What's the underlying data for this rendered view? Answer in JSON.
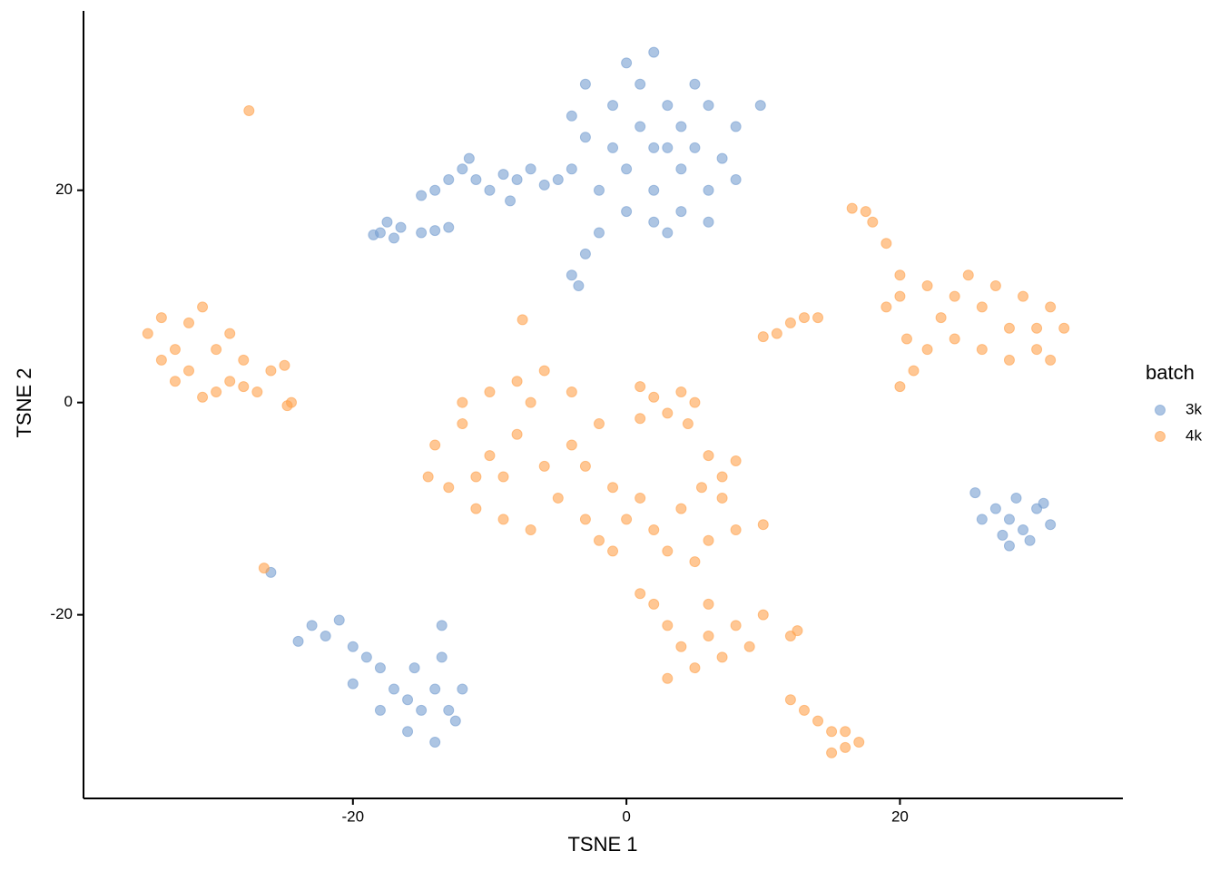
{
  "chart_data": {
    "type": "scatter",
    "x_label": "TSNE 1",
    "y_label": "TSNE 2",
    "legend_title": "batch",
    "legend_position": "right",
    "xlim": [
      -39.7,
      36.3
    ],
    "ylim": [
      -37.3,
      36.9
    ],
    "xticks": [
      -20,
      0,
      20
    ],
    "yticks": [
      -20,
      0,
      20
    ],
    "series": [
      {
        "name": "3k",
        "color": "#779fd1",
        "x": [
          0,
          2,
          4,
          3,
          5,
          1,
          -1,
          -3,
          -4,
          -2,
          0,
          2,
          4,
          6,
          7,
          8,
          6,
          4,
          2,
          -1,
          1,
          3,
          5,
          -3,
          0,
          2,
          -4,
          -2,
          3,
          6,
          -3,
          -4,
          -3.5,
          8,
          -7,
          -8,
          -9,
          -10,
          -11,
          -12,
          -13,
          -14,
          -15,
          -6,
          -5,
          -11.5,
          -8.5,
          -18,
          -17,
          -16.5,
          -18.5,
          -17.5,
          -15,
          -14,
          -13,
          9.8,
          27,
          28,
          29,
          30,
          28.5,
          27.5,
          29.5,
          31,
          26,
          28,
          30.5,
          25.5,
          -23,
          -22,
          -24,
          -21,
          -20,
          -19,
          -18,
          -17,
          -16,
          -15,
          -14,
          -13,
          -12.5,
          -16,
          -14,
          -15.5,
          -13.5,
          -13.5,
          -18,
          -12,
          -20,
          -26
        ],
        "values": [
          22,
          24,
          26,
          28,
          30,
          30,
          28,
          25,
          22,
          20,
          18,
          17,
          18,
          20,
          23,
          26,
          28,
          22,
          20,
          24,
          26,
          24,
          24,
          30,
          32,
          33,
          27,
          16,
          16,
          17,
          14,
          12,
          11,
          21,
          22,
          21,
          21.5,
          20,
          21,
          22,
          21,
          20,
          19.5,
          20.5,
          21,
          23,
          19,
          16,
          15.5,
          16.5,
          15.8,
          17,
          16,
          16.2,
          16.5,
          28,
          -10,
          -11,
          -12,
          -10,
          -9,
          -12.5,
          -13,
          -11.5,
          -11,
          -13.5,
          -9.5,
          -8.5,
          -21,
          -22,
          -22.5,
          -20.5,
          -23,
          -24,
          -25,
          -27,
          -28,
          -29,
          -27,
          -29,
          -30,
          -31,
          -32,
          -25,
          -21,
          -24,
          -29,
          -27,
          -26.5,
          -16
        ]
      },
      {
        "name": "4k",
        "color": "#ffa14c",
        "x": [
          -35,
          -34,
          -33,
          -32,
          -31,
          -32,
          -30,
          -29,
          -28,
          -27,
          -26,
          -25,
          -30,
          -33,
          -34,
          -29,
          -31,
          -28,
          -27.6,
          -26.5,
          -7.6,
          -24.5,
          -24.8,
          -8,
          -10,
          -12,
          -14,
          -13,
          -11,
          -9,
          -7,
          -5,
          -3,
          -2,
          -4,
          -6,
          -8,
          -10,
          -12,
          -6,
          -9,
          -4,
          -7,
          -11,
          -14.5,
          -1,
          -3,
          2,
          1,
          3,
          4,
          4.5,
          1,
          5,
          6,
          7,
          8,
          5.5,
          7,
          0,
          2,
          4,
          3,
          6,
          8,
          1,
          -1,
          10,
          5,
          -2,
          3,
          4,
          5,
          6,
          3,
          7,
          8,
          10,
          12,
          12.5,
          9,
          1,
          2,
          6,
          12,
          13,
          14,
          15,
          16,
          17,
          16,
          15,
          20,
          22,
          24,
          26,
          28,
          30,
          31,
          32,
          30,
          28,
          26,
          24,
          23,
          25,
          27,
          29,
          31,
          22,
          20,
          21,
          20,
          17.5,
          18,
          19,
          16.5,
          13,
          11,
          12,
          14,
          10,
          19,
          20.5
        ],
        "values": [
          6.5,
          8,
          5,
          7.5,
          9,
          3,
          5,
          2,
          4,
          1,
          3,
          3.5,
          1,
          2,
          4,
          6.5,
          0.5,
          1.5,
          27.5,
          -15.6,
          7.8,
          0,
          -0.3,
          -3,
          -5,
          -2,
          -4,
          -8,
          -10,
          -11,
          -12,
          -9,
          -6,
          -2,
          1,
          3,
          2,
          1,
          0,
          -6,
          -7,
          -4,
          0,
          -7,
          -7,
          -8,
          -11,
          0.5,
          1.5,
          -1,
          1,
          -2,
          -1.5,
          0,
          -5,
          -7,
          -5.5,
          -8,
          -9,
          -11,
          -12,
          -10,
          -14,
          -13,
          -12,
          -9,
          -14,
          -11.5,
          -15,
          -13,
          -21,
          -23,
          -25,
          -22,
          -26,
          -24,
          -21,
          -20,
          -22,
          -21.5,
          -23,
          -18,
          -19,
          -19,
          -28,
          -29,
          -30,
          -31,
          -32.5,
          -32,
          -31,
          -33,
          12,
          11,
          10,
          9,
          7,
          7,
          9,
          7,
          5,
          4,
          5,
          6,
          8,
          12,
          11,
          10,
          4,
          5,
          10,
          3,
          1.5,
          18,
          17,
          15,
          18.3,
          8,
          6.5,
          7.5,
          8,
          6.2,
          9,
          6
        ]
      }
    ]
  }
}
